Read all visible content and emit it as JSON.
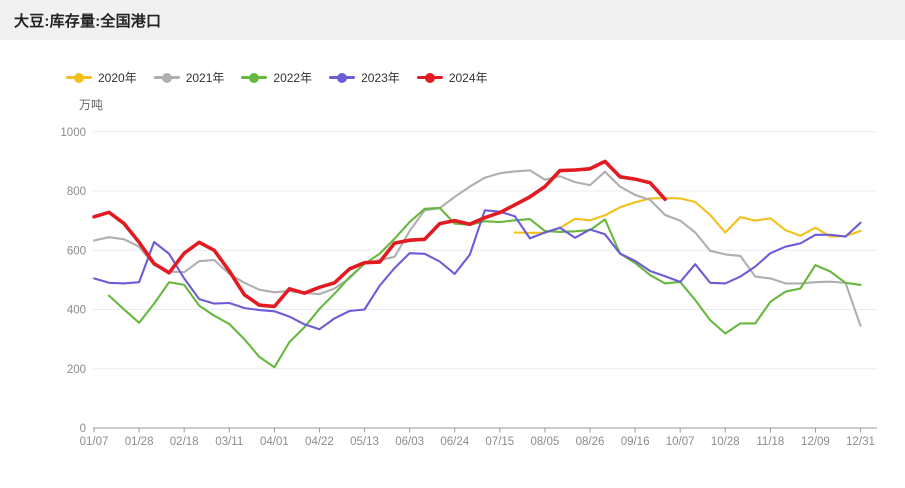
{
  "header": {
    "title": "大豆:库存量:全国港口"
  },
  "chart_data": {
    "type": "line",
    "title": "大豆:库存量:全国港口",
    "unit_label": "万吨",
    "legend_position": "top-left",
    "grid": true,
    "ylim": [
      0,
      1000
    ],
    "yticks": [
      0,
      200,
      400,
      600,
      800,
      1000
    ],
    "x_tick_every": 3,
    "categories": [
      "01/07",
      "01/14",
      "01/21",
      "01/28",
      "02/04",
      "02/11",
      "02/18",
      "02/25",
      "03/04",
      "03/11",
      "03/18",
      "03/25",
      "04/01",
      "04/08",
      "04/15",
      "04/22",
      "04/29",
      "05/06",
      "05/13",
      "05/20",
      "05/27",
      "06/03",
      "06/10",
      "06/17",
      "06/24",
      "07/01",
      "07/08",
      "07/15",
      "07/22",
      "07/29",
      "08/05",
      "08/12",
      "08/19",
      "08/26",
      "09/02",
      "09/09",
      "09/16",
      "09/23",
      "09/30",
      "10/07",
      "10/14",
      "10/21",
      "10/28",
      "11/04",
      "11/11",
      "11/18",
      "11/25",
      "12/02",
      "12/09",
      "12/16",
      "12/23",
      "12/31"
    ],
    "series": [
      {
        "name": "2020年",
        "color": "#F2C019",
        "values": [
          null,
          null,
          null,
          null,
          null,
          null,
          null,
          null,
          null,
          null,
          null,
          null,
          null,
          null,
          null,
          null,
          null,
          null,
          null,
          null,
          null,
          null,
          null,
          null,
          null,
          null,
          null,
          null,
          660,
          659,
          659,
          675,
          706,
          701,
          718,
          745,
          762,
          775,
          776,
          775,
          763,
          719,
          660,
          712,
          700,
          708,
          668,
          649,
          676,
          646,
          648,
          665
        ]
      },
      {
        "name": "2021年",
        "color": "#AFAFAF",
        "values": [
          633,
          644,
          637,
          612,
          550,
          528,
          526,
          563,
          567,
          520,
          490,
          467,
          458,
          462,
          456,
          452,
          471,
          505,
          556,
          567,
          578,
          665,
          735,
          742,
          780,
          815,
          845,
          860,
          866,
          870,
          838,
          850,
          830,
          820,
          865,
          815,
          787,
          770,
          719,
          700,
          660,
          598,
          586,
          581,
          511,
          505,
          488,
          488,
          492,
          494,
          490,
          345
        ]
      },
      {
        "name": "2022年",
        "color": "#67B83F",
        "values": [
          null,
          447,
          400,
          355,
          420,
          492,
          483,
          413,
          379,
          351,
          300,
          240,
          205,
          290,
          340,
          402,
          453,
          509,
          554,
          588,
          639,
          695,
          740,
          743,
          690,
          686,
          698,
          695,
          701,
          705,
          665,
          662,
          664,
          668,
          704,
          589,
          557,
          516,
          488,
          493,
          432,
          364,
          319,
          353,
          353,
          426,
          460,
          471,
          550,
          528,
          490,
          483
        ]
      },
      {
        "name": "2023年",
        "color": "#6C5CD6",
        "values": [
          505,
          490,
          488,
          492,
          628,
          588,
          505,
          435,
          420,
          422,
          405,
          398,
          394,
          376,
          350,
          333,
          370,
          395,
          400,
          480,
          540,
          590,
          588,
          562,
          520,
          585,
          735,
          730,
          715,
          640,
          660,
          676,
          642,
          670,
          654,
          589,
          564,
          530,
          512,
          493,
          553,
          490,
          488,
          511,
          545,
          590,
          612,
          623,
          652,
          652,
          646,
          693
        ]
      },
      {
        "name": "2024年",
        "color": "#E21A22",
        "values": [
          713,
          728,
          690,
          627,
          555,
          524,
          590,
          627,
          600,
          530,
          450,
          415,
          410,
          470,
          455,
          475,
          490,
          537,
          558,
          560,
          624,
          634,
          637,
          690,
          700,
          688,
          710,
          727,
          753,
          780,
          815,
          869,
          871,
          875,
          900,
          848,
          840,
          828,
          772,
          null,
          null,
          null,
          null,
          null,
          null,
          null,
          null,
          null,
          null,
          null,
          null,
          null
        ]
      }
    ]
  }
}
